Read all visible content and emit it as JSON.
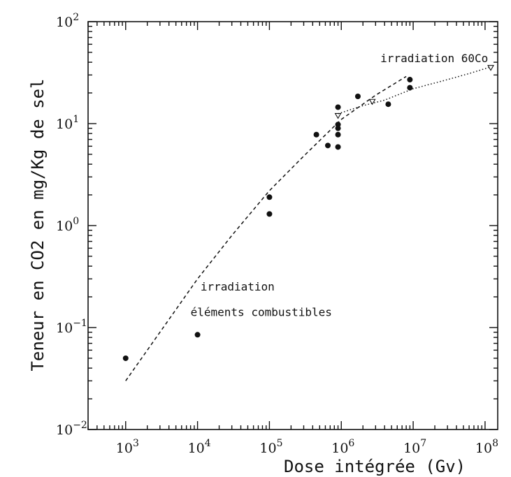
{
  "chart_data": {
    "type": "scatter",
    "title": "",
    "xlabel": "Dose intégrée (Gv)",
    "ylabel": "Teneur en CO2 en mg/Kg de sel",
    "x_scale": "log",
    "y_scale": "log",
    "xlim": [
      300,
      150000000
    ],
    "ylim": [
      0.01,
      100
    ],
    "x_ticks": [
      {
        "value": 1000,
        "base": "10",
        "exp": "3"
      },
      {
        "value": 10000,
        "base": "10",
        "exp": "4"
      },
      {
        "value": 100000,
        "base": "10",
        "exp": "5"
      },
      {
        "value": 1000000,
        "base": "10",
        "exp": "6"
      },
      {
        "value": 10000000,
        "base": "10",
        "exp": "7"
      },
      {
        "value": 100000000,
        "base": "10",
        "exp": "8"
      }
    ],
    "y_ticks": [
      {
        "value": 0.01,
        "base": "10",
        "exp": "−2"
      },
      {
        "value": 0.1,
        "base": "10",
        "exp": "−1"
      },
      {
        "value": 1,
        "base": "10",
        "exp": "0"
      },
      {
        "value": 10,
        "base": "10",
        "exp": "1"
      },
      {
        "value": 100,
        "base": "10",
        "exp": "2"
      }
    ],
    "grid": false,
    "points": [
      [
        1000,
        0.05
      ],
      [
        10000,
        0.085
      ],
      [
        100000,
        1.9
      ],
      [
        100000,
        1.3
      ],
      [
        450000,
        7.8
      ],
      [
        650000,
        6.1
      ],
      [
        900000,
        14.5
      ],
      [
        900000,
        9.8
      ],
      [
        900000,
        9.0
      ],
      [
        900000,
        7.8
      ],
      [
        900000,
        5.9
      ],
      [
        1700000,
        18.5
      ],
      [
        4500000,
        15.5
      ],
      [
        9000000,
        27
      ],
      [
        9000000,
        22.5
      ]
    ],
    "curves": [
      {
        "style": "dashed",
        "points": [
          [
            1000,
            0.03
          ],
          [
            3000,
            0.09
          ],
          [
            10000,
            0.3
          ],
          [
            30000,
            0.8
          ],
          [
            100000,
            2.2
          ],
          [
            300000,
            4.8
          ],
          [
            1000000,
            11
          ],
          [
            3000000,
            19
          ],
          [
            8000000,
            29
          ]
        ]
      },
      {
        "style": "dotted",
        "points": [
          [
            900000,
            12.5
          ],
          [
            2000000,
            15
          ],
          [
            4000000,
            17
          ],
          [
            10000000,
            22
          ],
          [
            30000000,
            27
          ],
          [
            60000000,
            31
          ],
          [
            120000000,
            36
          ]
        ]
      }
    ],
    "marker_triangles": [
      [
        900000,
        12
      ],
      [
        2700000,
        16.5
      ],
      [
        120000000,
        35.5
      ]
    ],
    "annotations": [
      {
        "text": "irradiation 60Co",
        "x": 3500000,
        "y": 40
      },
      {
        "text": "irradiation",
        "x": 11000,
        "y": 0.23
      },
      {
        "text": "éléments combustibles",
        "x": 8000,
        "y": 0.13
      }
    ]
  }
}
